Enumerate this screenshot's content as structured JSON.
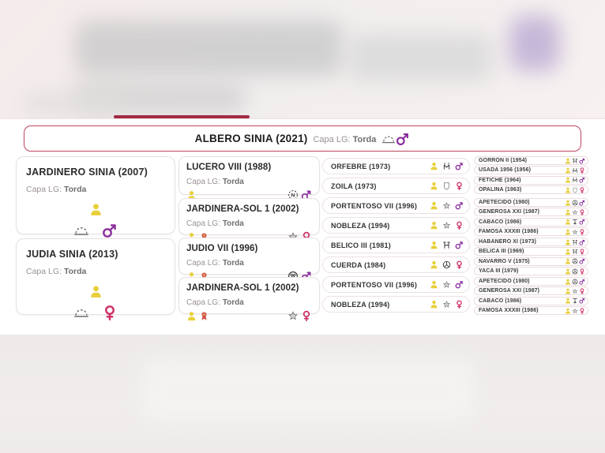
{
  "colors": {
    "accent_dark_red": "#a02c44",
    "banner_border": "#bc4560",
    "male_purple": "#8b2f9f",
    "female_crimson": "#ce2e63",
    "person_yellow": "#e8cf3a",
    "rosette_red": "#cf5349"
  },
  "icon_glyphs": {
    "person-icon": "👤",
    "rosette-icon": "🏵",
    "male-icon": "♂",
    "female-icon": "♀",
    "cloud-icon": "☁",
    "circle-n-icon": "Ⓝ",
    "laurel-circle-icon": "Ⓥ",
    "star-icon": "☆",
    "crown-m-icon": "M̈",
    "shield-icon": "⛨",
    "gate-h-icon": "Ħ",
    "wheel-icon": "☸",
    "trophy-icon": "🏆"
  },
  "banner": {
    "title": "ALBERO SINIA (2021)",
    "capa_label": "Capa LG:",
    "capa_value": "Torda",
    "icons": [
      "cloud-icon",
      "male-icon"
    ]
  },
  "tree": {
    "gen1": [
      {
        "name": "JARDINERO SINIA (2007)",
        "capa_label": "Capa LG:",
        "capa_value": "Torda",
        "center_icons": [
          "person-icon"
        ],
        "bottom_icons": [
          "cloud-icon",
          "male-icon"
        ]
      },
      {
        "name": "JUDIA SINIA (2013)",
        "capa_label": "Capa LG:",
        "capa_value": "Torda",
        "center_icons": [
          "person-icon"
        ],
        "bottom_icons": [
          "cloud-icon",
          "female-icon"
        ]
      }
    ],
    "gen2": [
      {
        "name": "LUCERO VIII (1988)",
        "capa_label": "Capa LG:",
        "capa_value": "Torda",
        "left_icons": [
          "person-icon"
        ],
        "right_icons": [
          "circle-n-icon",
          "male-icon"
        ]
      },
      {
        "name": "JARDINERA-SOL 1 (2002)",
        "capa_label": "Capa LG:",
        "capa_value": "Torda",
        "left_icons": [
          "person-icon",
          "rosette-icon"
        ],
        "right_icons": [
          "star-icon",
          "female-icon"
        ]
      },
      {
        "name": "JUDIO VII (1996)",
        "capa_label": "Capa LG:",
        "capa_value": "Torda",
        "left_icons": [
          "person-icon",
          "rosette-icon"
        ],
        "right_icons": [
          "laurel-circle-icon",
          "male-icon"
        ]
      },
      {
        "name": "JARDINERA-SOL 1 (2002)",
        "capa_label": "Capa LG:",
        "capa_value": "Torda",
        "left_icons": [
          "person-icon",
          "rosette-icon"
        ],
        "right_icons": [
          "star-icon",
          "female-icon"
        ]
      }
    ],
    "gen3": [
      {
        "name": "ORFEBRE (1973)",
        "icons": [
          "person-icon",
          "crown-m-icon",
          "male-icon"
        ]
      },
      {
        "name": "ZOILA (1973)",
        "icons": [
          "person-icon",
          "shield-icon",
          "female-icon"
        ]
      },
      {
        "name": "PORTENTOSO VII (1996)",
        "icons": [
          "person-icon",
          "star-icon",
          "male-icon"
        ]
      },
      {
        "name": "NOBLEZA (1994)",
        "icons": [
          "person-icon",
          "star-icon",
          "female-icon"
        ]
      },
      {
        "name": "BELICO III (1981)",
        "icons": [
          "person-icon",
          "gate-h-icon",
          "male-icon"
        ]
      },
      {
        "name": "CUERDA (1984)",
        "icons": [
          "person-icon",
          "wheel-icon",
          "female-icon"
        ]
      },
      {
        "name": "PORTENTOSO VII (1996)",
        "icons": [
          "person-icon",
          "star-icon",
          "male-icon"
        ]
      },
      {
        "name": "NOBLEZA (1994)",
        "icons": [
          "person-icon",
          "star-icon",
          "female-icon"
        ]
      }
    ],
    "gen4": [
      {
        "name": "GORRON II (1954)",
        "icons": [
          "person-icon",
          "gate-h-icon",
          "male-icon"
        ]
      },
      {
        "name": "USADA 1956 (1956)",
        "icons": [
          "person-icon",
          "crown-m-icon",
          "female-icon"
        ]
      },
      {
        "name": "FETICHE (1964)",
        "icons": [
          "person-icon",
          "crown-m-icon",
          "male-icon"
        ]
      },
      {
        "name": "OPALINA (1963)",
        "icons": [
          "person-icon",
          "shield-icon",
          "female-icon"
        ]
      },
      {
        "name": "APETECIDO (1980)",
        "icons": [
          "person-icon",
          "wheel-icon",
          "male-icon"
        ]
      },
      {
        "name": "GENEROSA XXI (1987)",
        "icons": [
          "person-icon",
          "star-icon",
          "female-icon"
        ]
      },
      {
        "name": "CABACO (1986)",
        "icons": [
          "person-icon",
          "trophy-icon",
          "male-icon"
        ]
      },
      {
        "name": "FAMOSA XXXIII (1986)",
        "icons": [
          "person-icon",
          "star-icon",
          "female-icon"
        ]
      },
      {
        "name": "HABANERO XI (1973)",
        "icons": [
          "person-icon",
          "gate-h-icon",
          "male-icon"
        ]
      },
      {
        "name": "BELICA III (1969)",
        "icons": [
          "person-icon",
          "gate-h-icon",
          "female-icon"
        ]
      },
      {
        "name": "NAVARRO V (1975)",
        "icons": [
          "person-icon",
          "wheel-icon",
          "male-icon"
        ]
      },
      {
        "name": "YACA III (1979)",
        "icons": [
          "person-icon",
          "wheel-icon",
          "female-icon"
        ]
      },
      {
        "name": "APETECIDO (1980)",
        "icons": [
          "person-icon",
          "wheel-icon",
          "male-icon"
        ]
      },
      {
        "name": "GENEROSA XXI (1987)",
        "icons": [
          "person-icon",
          "star-icon",
          "female-icon"
        ]
      },
      {
        "name": "CABACO (1986)",
        "icons": [
          "person-icon",
          "trophy-icon",
          "male-icon"
        ]
      },
      {
        "name": "FAMOSA XXXIII (1986)",
        "icons": [
          "person-icon",
          "star-icon",
          "female-icon"
        ]
      }
    ]
  }
}
